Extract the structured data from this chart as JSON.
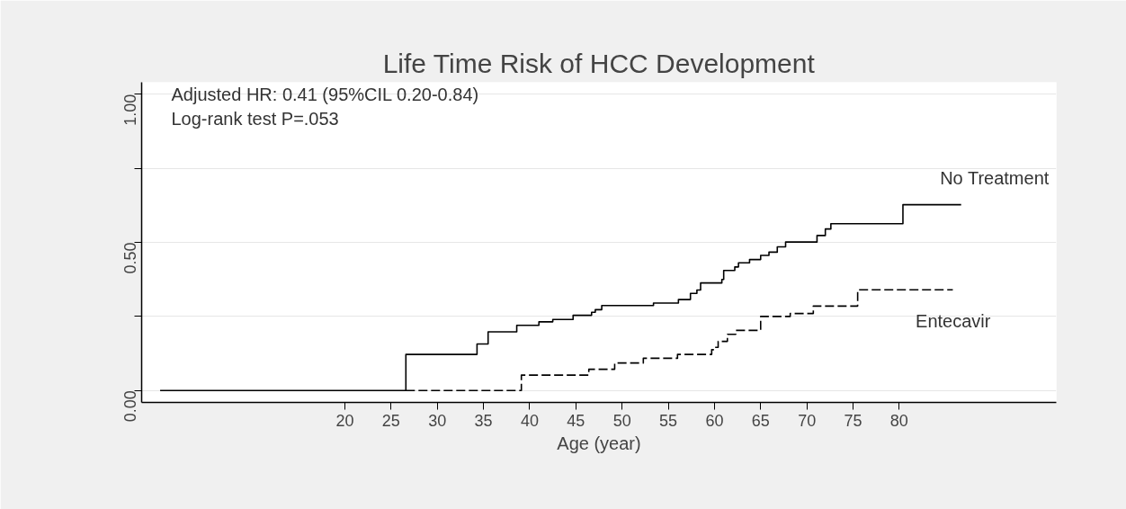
{
  "chart_data": {
    "type": "step",
    "title": "Life Time Risk of HCC Development",
    "xlabel": "Age (year)",
    "annotations": [
      "Adjusted HR: 0.41 (95%CIL 0.20-0.84)",
      "Log-rank test P=.053"
    ],
    "xlim": [
      -2,
      97
    ],
    "xticks": [
      20,
      25,
      30,
      35,
      40,
      45,
      50,
      55,
      60,
      65,
      70,
      75,
      80
    ],
    "ylim": [
      -0.04,
      1.04
    ],
    "yticks": [
      {
        "value": 0,
        "label": "0.00"
      },
      {
        "value": 0.25,
        "label": null
      },
      {
        "value": 0.5,
        "label": "0.50"
      },
      {
        "value": 0.75,
        "label": null
      },
      {
        "value": 1,
        "label": "1.00"
      }
    ],
    "grid": "y",
    "marker": "none",
    "series": [
      {
        "name": "No Treatment",
        "color": "#000000",
        "line_style": "solid",
        "x": [
          0,
          26.6,
          34.3,
          35.5,
          38.6,
          41.0,
          42.5,
          44.7,
          46.7,
          47.1,
          47.8,
          53.4,
          56.1,
          57.4,
          58.1,
          58.5,
          60.8,
          61.0,
          62.2,
          62.6,
          63.8,
          65.0,
          65.9,
          66.8,
          67.7,
          71.1,
          72.0,
          72.6,
          80.4,
          86.7
        ],
        "values": [
          0,
          0.122,
          0.157,
          0.198,
          0.22,
          0.232,
          0.24,
          0.254,
          0.264,
          0.273,
          0.287,
          0.295,
          0.307,
          0.328,
          0.339,
          0.363,
          0.375,
          0.405,
          0.417,
          0.431,
          0.442,
          0.456,
          0.467,
          0.485,
          0.501,
          0.523,
          0.545,
          0.563,
          0.627,
          0.627
        ]
      },
      {
        "name": "Entecavir",
        "color": "#000000",
        "line_style": "dashed",
        "x": [
          26.6,
          39.1,
          46.4,
          49.2,
          52.3,
          56.0,
          59.7,
          60.0,
          60.4,
          61.4,
          62.3,
          65.0,
          68.2,
          70.7,
          75.5,
          85.8
        ],
        "values": [
          0,
          0.052,
          0.072,
          0.093,
          0.109,
          0.122,
          0.138,
          0.146,
          0.166,
          0.19,
          0.203,
          0.25,
          0.26,
          0.285,
          0.34,
          0.34
        ]
      }
    ]
  }
}
